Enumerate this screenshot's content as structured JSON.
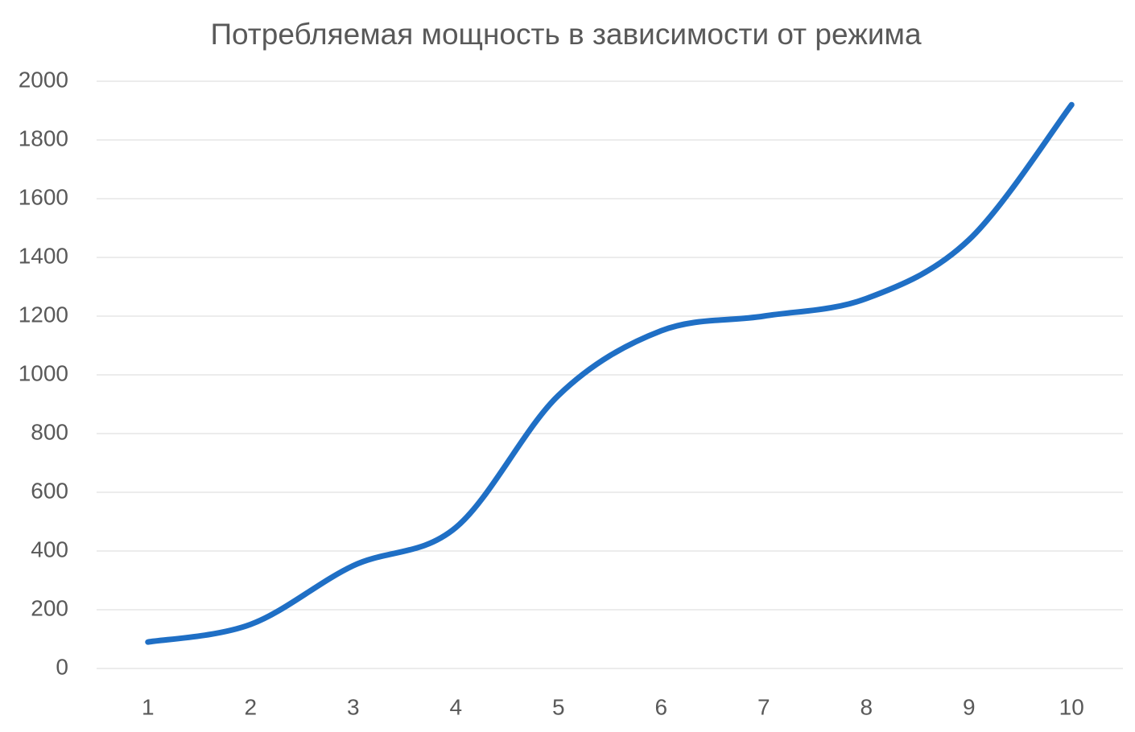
{
  "chart_data": {
    "type": "line",
    "title": "Потребляемая мощность в зависимости от режима",
    "categories": [
      "1",
      "2",
      "3",
      "4",
      "5",
      "6",
      "7",
      "8",
      "9",
      "10"
    ],
    "series": [
      {
        "values": [
          90,
          150,
          350,
          480,
          930,
          1150,
          1200,
          1260,
          1460,
          1920
        ],
        "color": "#1f6fc5"
      }
    ],
    "ylim": [
      0,
      2000
    ],
    "yticks": [
      0,
      200,
      400,
      600,
      800,
      1000,
      1200,
      1400,
      1600,
      1800,
      2000
    ],
    "grid": true,
    "smooth": true
  }
}
